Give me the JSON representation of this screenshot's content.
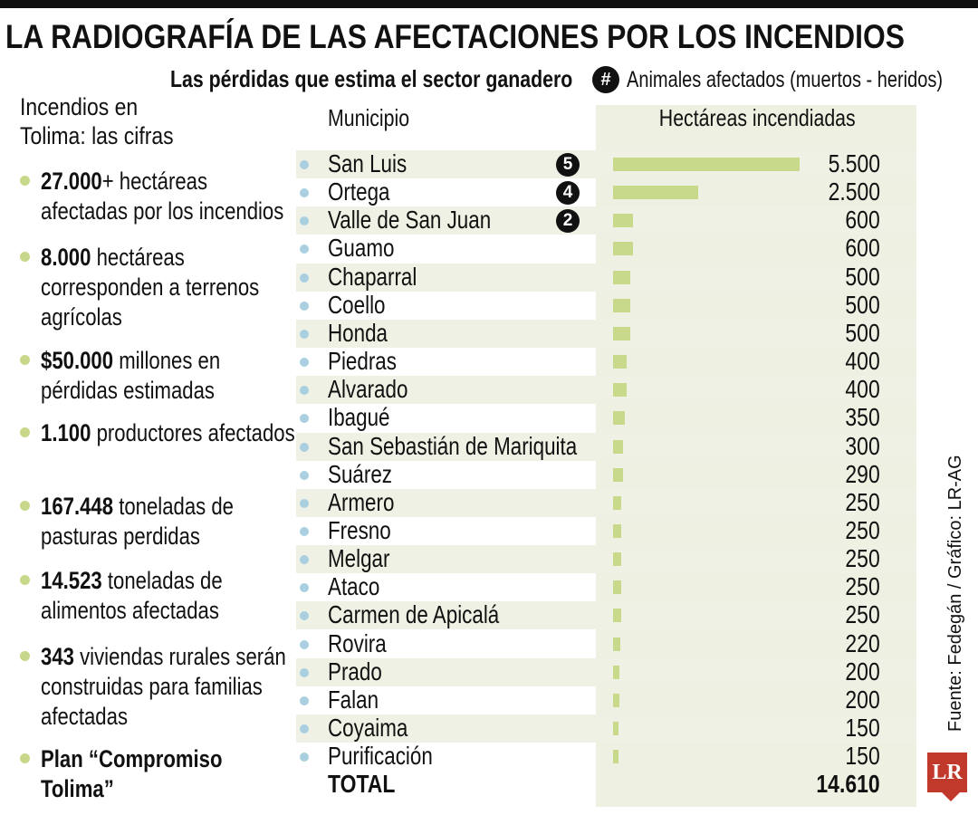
{
  "title": "LA RADIOGRAFÍA DE LAS AFECTACIONES POR LOS INCENDIOS",
  "subtitle": "Las pérdidas que estima el sector ganadero",
  "legend": {
    "badge": "#",
    "text": "Animales afectados (muertos - heridos)"
  },
  "left_panel": {
    "title": "Incendios en Tolima: las cifras",
    "stats": [
      {
        "bold": "27.000",
        "text": "+ hectáreas afectadas por los incendios"
      },
      {
        "bold": "8.000",
        "text": " hectáreas corresponden a terrenos agrícolas"
      },
      {
        "bold": "$50.000",
        "text": " millones en pérdidas estimadas"
      },
      {
        "bold": "1.100",
        "text": " productores afectados"
      },
      {
        "bold": "167.448",
        "text": " toneladas de pasturas perdidas"
      },
      {
        "bold": "14.523",
        "text": " toneladas de alimentos afectadas"
      },
      {
        "bold": "343",
        "text": " viviendas rurales serán construidas para familias afectadas"
      },
      {
        "bold": "Plan “Compromiso Tolima”",
        "text": ""
      }
    ]
  },
  "table": {
    "col_municipio": "Municipio",
    "col_hectareas": "Hectáreas incendiadas",
    "total_label": "TOTAL",
    "total_value": "14.610"
  },
  "chart_data": {
    "type": "bar",
    "categories": [
      "San Luis",
      "Ortega",
      "Valle de San Juan",
      "Guamo",
      "Chaparral",
      "Coello",
      "Honda",
      "Piedras",
      "Alvarado",
      "Ibagué",
      "San Sebastián de Mariquita",
      "Suárez",
      "Armero",
      "Fresno",
      "Melgar",
      "Ataco",
      "Carmen de Apicalá",
      "Rovira",
      "Prado",
      "Falan",
      "Coyaima",
      "Purificación"
    ],
    "values": [
      5500,
      2500,
      600,
      600,
      500,
      500,
      500,
      400,
      400,
      350,
      300,
      290,
      250,
      250,
      250,
      250,
      250,
      220,
      200,
      200,
      150,
      150
    ],
    "value_labels": [
      "5.500",
      "2.500",
      "600",
      "600",
      "500",
      "500",
      "500",
      "400",
      "400",
      "350",
      "300",
      "290",
      "250",
      "250",
      "250",
      "250",
      "250",
      "220",
      "200",
      "200",
      "150",
      "150"
    ],
    "animals_affected": [
      "5",
      "4",
      "2",
      "",
      "",
      "",
      "",
      "",
      "",
      "",
      "",
      "",
      "",
      "",
      "",
      "",
      "",
      "",
      "",
      "",
      "",
      ""
    ],
    "xlabel": "Municipio",
    "ylabel": "Hectáreas incendiadas",
    "colors": {
      "bar": "#c9d98c",
      "dot": "#a9cfe0",
      "badge": "#111111"
    }
  },
  "source": "Fuente: Fedegán / Gráfico: LR-AG",
  "logo": "LR"
}
